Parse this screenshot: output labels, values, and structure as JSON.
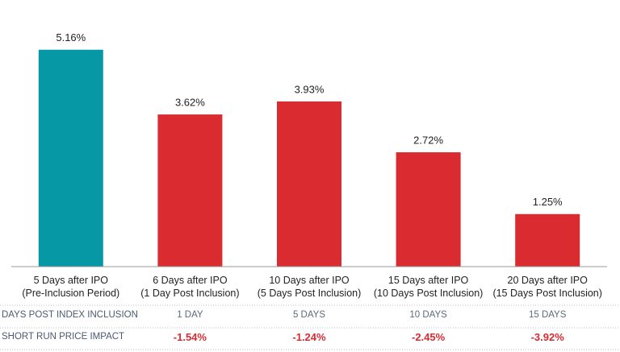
{
  "chart_data": {
    "type": "bar",
    "categories": [
      "5 Days after IPO\n(Pre-Inclusion Period)",
      "6 Days after IPO\n(1 Day Post Inclusion)",
      "10 Days after IPO\n(5 Days Post Inclusion)",
      "15 Days after IPO\n(10 Days Post Inclusion)",
      "20 Days after IPO\n(15 Days Post Inclusion)"
    ],
    "values": [
      5.16,
      3.62,
      3.93,
      2.72,
      1.25
    ],
    "value_labels": [
      "5.16%",
      "3.62%",
      "3.93%",
      "2.72%",
      "1.25%"
    ],
    "colors": [
      "#0798a6",
      "#d92b30",
      "#d92b30",
      "#d92b30",
      "#d92b30"
    ],
    "ylim": [
      0,
      5.5
    ],
    "grid": false
  },
  "table": {
    "rows": [
      {
        "label": "DAYS POST INDEX INCLUSION",
        "cells": [
          "1 DAY",
          "5 DAYS",
          "10 DAYS",
          "15 DAYS"
        ]
      },
      {
        "label": "SHORT RUN PRICE IMPACT",
        "cells": [
          "-1.54%",
          "-1.24%",
          "-2.45%",
          "-3.92%"
        ]
      }
    ]
  }
}
